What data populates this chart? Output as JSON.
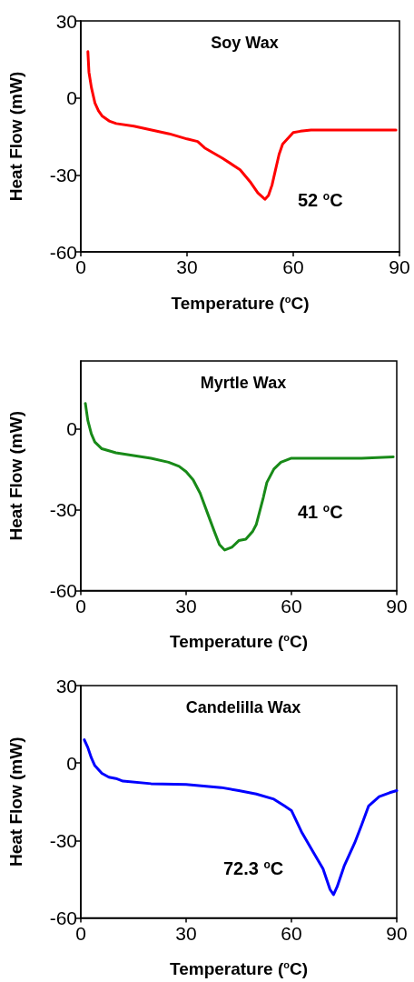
{
  "chart_data": [
    {
      "type": "line",
      "title": "Soy Wax",
      "xlabel": "Temperature ($^{o}$C)",
      "ylabel": "Heat Flow (mW)",
      "xlim": [
        0,
        90
      ],
      "xticks": [
        0,
        30,
        60,
        90
      ],
      "ylim": [
        -60,
        30
      ],
      "yticks": [
        -60,
        -30,
        0,
        30
      ],
      "marker": "none",
      "annotations": [
        "52 $^{o}$C"
      ],
      "series": [
        {
          "color": "#ff0000",
          "x": [
            2,
            2.3,
            3,
            4,
            5,
            6,
            8,
            10,
            15,
            20,
            25,
            30,
            33,
            35,
            40,
            45,
            48,
            50,
            52,
            53,
            54,
            55,
            56,
            57,
            59,
            60,
            62,
            65,
            70,
            80,
            89
          ],
          "values": [
            18,
            10,
            4,
            -2,
            -5,
            -7,
            -9,
            -10,
            -11,
            -12.5,
            -14,
            -16,
            -17,
            -19.5,
            -23.5,
            -28,
            -33,
            -37,
            -39.5,
            -38,
            -34,
            -28,
            -22,
            -18,
            -15,
            -13.5,
            -13,
            -12.5,
            -12.5,
            -12.5,
            -12.5
          ]
        }
      ]
    },
    {
      "type": "line",
      "title": "Myrtle Wax",
      "xlabel": "Temperature ($^{o}$C)",
      "ylabel": "Heat Flow (mW)",
      "xlim": [
        0,
        90
      ],
      "xticks": [
        0,
        30,
        60,
        90
      ],
      "ylim": [
        -60,
        25
      ],
      "yticks": [
        -60,
        -30,
        0
      ],
      "marker": "none",
      "annotations": [
        "41 $^{o}$C"
      ],
      "series": [
        {
          "color": "#188a18",
          "x": [
            1.3,
            2,
            3,
            4,
            6,
            10,
            15,
            20,
            25,
            28,
            30,
            32,
            34,
            36,
            38,
            39.5,
            41,
            43,
            45,
            47,
            49,
            50,
            52,
            53,
            55,
            57,
            60,
            70,
            80,
            89
          ],
          "values": [
            9.3,
            3,
            -2,
            -5,
            -7.5,
            -9,
            -10,
            -11,
            -12.5,
            -14,
            -16,
            -19,
            -24,
            -31,
            -38,
            -43,
            -45,
            -44,
            -41.5,
            -41,
            -38,
            -35.5,
            -25.5,
            -20,
            -15,
            -12.5,
            -11,
            -11,
            -11,
            -10.5
          ]
        }
      ]
    },
    {
      "type": "line",
      "title": "Candelilla Wax",
      "xlabel": "Temperature ($^{o}$C)",
      "ylabel": "Heat Flow (mW)",
      "xlim": [
        0,
        90
      ],
      "xticks": [
        0,
        30,
        60,
        90
      ],
      "ylim": [
        -60,
        30
      ],
      "yticks": [
        -60,
        -30,
        0,
        30
      ],
      "marker": "none",
      "annotations": [
        "72.3 $^{o}$C"
      ],
      "series": [
        {
          "color": "#0000ff",
          "x": [
            1,
            2,
            3,
            4,
            6,
            8,
            10,
            12,
            20,
            30,
            40,
            45,
            50,
            55,
            58,
            60,
            63,
            66,
            69,
            71,
            72,
            73,
            75,
            78,
            80,
            82,
            85,
            88,
            90
          ],
          "values": [
            9,
            6,
            2,
            -1,
            -4,
            -5.5,
            -6,
            -7,
            -8,
            -8.3,
            -9.5,
            -10.7,
            -12,
            -14,
            -16.6,
            -18.4,
            -27,
            -34,
            -41,
            -49,
            -51,
            -48,
            -40,
            -31,
            -24,
            -16.6,
            -13,
            -11.5,
            -10.7
          ]
        }
      ]
    }
  ]
}
